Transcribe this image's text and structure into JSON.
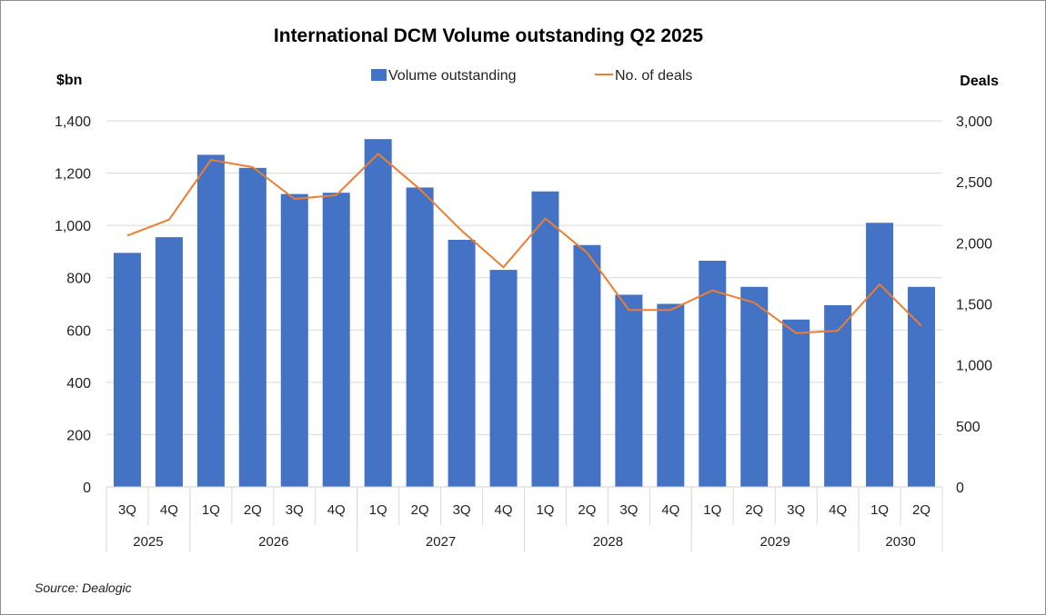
{
  "chart_data": {
    "type": "bar",
    "title": "International DCM Volume outstanding Q2 2025",
    "ylabel": "$bn",
    "y2label": "Deals",
    "ylim": [
      0,
      1400
    ],
    "y2lim": [
      0,
      3000
    ],
    "yticks": [
      "0",
      "200",
      "400",
      "600",
      "800",
      "1,000",
      "1,200",
      "1,400"
    ],
    "y2ticks": [
      "0",
      "500",
      "1,000",
      "1,500",
      "2,000",
      "2,500",
      "3,000"
    ],
    "categories": [
      "3Q",
      "4Q",
      "1Q",
      "2Q",
      "3Q",
      "4Q",
      "1Q",
      "2Q",
      "3Q",
      "4Q",
      "1Q",
      "2Q",
      "3Q",
      "4Q",
      "1Q",
      "2Q",
      "3Q",
      "4Q",
      "1Q",
      "2Q"
    ],
    "groups": [
      {
        "label": "2025",
        "span": 2
      },
      {
        "label": "2026",
        "span": 4
      },
      {
        "label": "2027",
        "span": 4
      },
      {
        "label": "2028",
        "span": 4
      },
      {
        "label": "2029",
        "span": 4
      },
      {
        "label": "2030",
        "span": 2
      }
    ],
    "series": [
      {
        "name": "Volume outstanding",
        "type": "bar",
        "axis": "left",
        "color": "#4472C4",
        "values": [
          895,
          955,
          1270,
          1220,
          1120,
          1125,
          1330,
          1145,
          945,
          830,
          1130,
          925,
          735,
          700,
          865,
          765,
          640,
          695,
          1010,
          765
        ]
      },
      {
        "name": "No. of deals",
        "type": "line",
        "axis": "right",
        "color": "#ED7D31",
        "values": [
          2060,
          2190,
          2680,
          2620,
          2360,
          2390,
          2730,
          2440,
          2100,
          1800,
          2200,
          1920,
          1450,
          1450,
          1610,
          1510,
          1260,
          1280,
          1660,
          1320
        ]
      }
    ],
    "legend": "top"
  },
  "source": "Source: Dealogic"
}
